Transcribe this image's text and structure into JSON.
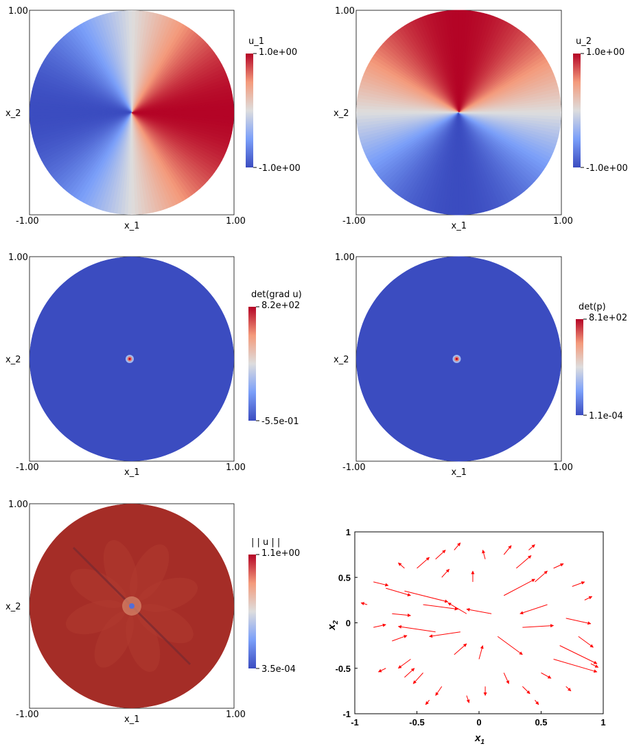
{
  "chart_data": [
    {
      "type": "heatmap",
      "field": "u_1",
      "pattern": "cos_angle",
      "xlabel": "x_1",
      "ylabel": "x_2",
      "x_ticks": [
        "-1.00",
        "1.00"
      ],
      "y_ticks": [
        "1.00"
      ],
      "xlim": [
        -1,
        1
      ],
      "ylim": [
        -1,
        1
      ],
      "domain": "unit disk",
      "colormap": "cool-to-warm",
      "colorbar": {
        "title": "u_1",
        "max_label": "1.0e+00",
        "min_label": "-1.0e+00",
        "max": 1.0,
        "min": -1.0
      }
    },
    {
      "type": "heatmap",
      "field": "u_2",
      "pattern": "sin_angle",
      "xlabel": "x_1",
      "ylabel": "x_2",
      "x_ticks": [
        "-1.00",
        "1.00"
      ],
      "y_ticks": [
        "1.00"
      ],
      "xlim": [
        -1,
        1
      ],
      "ylim": [
        -1,
        1
      ],
      "domain": "unit disk",
      "colormap": "cool-to-warm",
      "colorbar": {
        "title": "u_2",
        "max_label": "1.0e+00",
        "min_label": "-1.0e+00",
        "max": 1.0,
        "min": -1.0
      }
    },
    {
      "type": "heatmap",
      "field": "det(grad u)",
      "pattern": "center_spike",
      "xlabel": "x_1",
      "ylabel": "x_2",
      "x_ticks": [
        "-1.00",
        "1.00"
      ],
      "y_ticks": [
        "1.00"
      ],
      "xlim": [
        -1,
        1
      ],
      "ylim": [
        -1,
        1
      ],
      "domain": "unit disk",
      "colormap": "cool-to-warm",
      "colorbar": {
        "title": "det(grad u)",
        "max_label": "8.2e+02",
        "min_label": "-5.5e-01",
        "max": 820,
        "min": -0.55
      }
    },
    {
      "type": "heatmap",
      "field": "det(p)",
      "pattern": "center_spike",
      "xlabel": "x_1",
      "ylabel": "x_2",
      "x_ticks": [
        "-1.00",
        "1.00"
      ],
      "y_ticks": [
        "1.00"
      ],
      "xlim": [
        -1,
        1
      ],
      "ylim": [
        -1,
        1
      ],
      "domain": "unit disk",
      "colormap": "cool-to-warm",
      "colorbar": {
        "title": "det(p)",
        "max_label": "8.1e+02",
        "min_label": "1.1e-04",
        "max": 810,
        "min": 0.00011
      }
    },
    {
      "type": "heatmap",
      "field": "||u||",
      "pattern": "near_max_with_center_dip",
      "xlabel": "x_1",
      "ylabel": "x_2",
      "x_ticks": [
        "-1.00",
        "1.00"
      ],
      "y_ticks": [
        "1.00"
      ],
      "xlim": [
        -1,
        1
      ],
      "ylim": [
        -1,
        1
      ],
      "domain": "unit disk",
      "colormap": "cool-to-warm",
      "colorbar": {
        "title": "| | u | |",
        "max_label": "1.1e+00",
        "min_label": "3.5e-04",
        "max": 1.1,
        "min": 0.00035
      }
    },
    {
      "type": "scatter",
      "subtype": "quiver",
      "xlabel": "x",
      "xlabel_sub": "1",
      "ylabel": "x",
      "ylabel_sub": "2",
      "xlim": [
        -1,
        1
      ],
      "ylim": [
        -1,
        1
      ],
      "x_ticks": [
        "-1",
        "-0.5",
        "0",
        "0.5",
        "1"
      ],
      "y_ticks": [
        "1",
        "0.5",
        "0",
        "-0.5",
        "-1"
      ],
      "arrow_color": "#ff0000",
      "arrows": [
        {
          "x": -0.85,
          "y": 0.45,
          "u": 0.12,
          "v": -0.04
        },
        {
          "x": -0.75,
          "y": 0.38,
          "u": 0.2,
          "v": -0.08
        },
        {
          "x": -0.6,
          "y": 0.35,
          "u": 0.35,
          "v": -0.12
        },
        {
          "x": -0.5,
          "y": 0.6,
          "u": 0.1,
          "v": 0.12
        },
        {
          "x": -0.35,
          "y": 0.7,
          "u": 0.08,
          "v": 0.1
        },
        {
          "x": -0.2,
          "y": 0.8,
          "u": 0.05,
          "v": 0.08
        },
        {
          "x": -0.3,
          "y": 0.5,
          "u": 0.06,
          "v": 0.09
        },
        {
          "x": -0.45,
          "y": 0.2,
          "u": 0.28,
          "v": -0.05
        },
        {
          "x": -0.7,
          "y": 0.1,
          "u": 0.15,
          "v": -0.02
        },
        {
          "x": -0.85,
          "y": -0.05,
          "u": 0.1,
          "v": 0.03
        },
        {
          "x": -0.7,
          "y": -0.2,
          "u": 0.12,
          "v": 0.06
        },
        {
          "x": -0.55,
          "y": -0.4,
          "u": -0.1,
          "v": -0.1
        },
        {
          "x": -0.45,
          "y": -0.55,
          "u": -0.08,
          "v": -0.12
        },
        {
          "x": -0.3,
          "y": -0.7,
          "u": -0.05,
          "v": -0.1
        },
        {
          "x": -0.2,
          "y": -0.35,
          "u": 0.1,
          "v": 0.12
        },
        {
          "x": -0.1,
          "y": -0.8,
          "u": 0.02,
          "v": -0.08
        },
        {
          "x": 0.05,
          "y": -0.7,
          "u": 0.0,
          "v": -0.1
        },
        {
          "x": 0.2,
          "y": -0.55,
          "u": 0.04,
          "v": -0.12
        },
        {
          "x": 0.35,
          "y": -0.7,
          "u": 0.06,
          "v": -0.08
        },
        {
          "x": 0.5,
          "y": -0.55,
          "u": 0.08,
          "v": -0.06
        },
        {
          "x": 0.6,
          "y": -0.4,
          "u": 0.35,
          "v": -0.14
        },
        {
          "x": 0.65,
          "y": -0.25,
          "u": 0.3,
          "v": -0.2
        },
        {
          "x": 0.8,
          "y": -0.15,
          "u": 0.12,
          "v": -0.12
        },
        {
          "x": 0.7,
          "y": 0.05,
          "u": 0.2,
          "v": -0.06
        },
        {
          "x": 0.55,
          "y": 0.2,
          "u": -0.22,
          "v": -0.1
        },
        {
          "x": 0.45,
          "y": 0.45,
          "u": 0.1,
          "v": 0.12
        },
        {
          "x": 0.3,
          "y": 0.6,
          "u": 0.12,
          "v": 0.14
        },
        {
          "x": 0.2,
          "y": 0.75,
          "u": 0.06,
          "v": 0.1
        },
        {
          "x": 0.05,
          "y": 0.7,
          "u": -0.02,
          "v": 0.1
        },
        {
          "x": 0.4,
          "y": 0.8,
          "u": 0.05,
          "v": 0.06
        },
        {
          "x": 0.6,
          "y": 0.6,
          "u": 0.08,
          "v": 0.05
        },
        {
          "x": 0.75,
          "y": 0.4,
          "u": 0.1,
          "v": 0.05
        },
        {
          "x": 0.85,
          "y": 0.25,
          "u": 0.06,
          "v": 0.04
        },
        {
          "x": 0.2,
          "y": 0.3,
          "u": 0.25,
          "v": 0.18
        },
        {
          "x": 0.1,
          "y": 0.1,
          "u": -0.2,
          "v": 0.05
        },
        {
          "x": -0.1,
          "y": 0.1,
          "u": -0.15,
          "v": 0.12
        },
        {
          "x": -0.15,
          "y": -0.1,
          "u": -0.25,
          "v": -0.05
        },
        {
          "x": 0.15,
          "y": -0.15,
          "u": 0.2,
          "v": -0.2
        },
        {
          "x": -0.35,
          "y": -0.1,
          "u": -0.3,
          "v": 0.06
        },
        {
          "x": 0.35,
          "y": -0.05,
          "u": 0.25,
          "v": 0.02
        },
        {
          "x": -0.6,
          "y": -0.6,
          "u": 0.08,
          "v": 0.1
        },
        {
          "x": 0.0,
          "y": -0.4,
          "u": 0.03,
          "v": 0.15
        },
        {
          "x": 0.45,
          "y": -0.85,
          "u": 0.03,
          "v": -0.05
        },
        {
          "x": -0.4,
          "y": -0.85,
          "u": -0.03,
          "v": -0.05
        },
        {
          "x": -0.75,
          "y": -0.5,
          "u": -0.06,
          "v": -0.04
        },
        {
          "x": 0.9,
          "y": -0.45,
          "u": 0.06,
          "v": -0.04
        },
        {
          "x": -0.05,
          "y": 0.45,
          "u": 0.0,
          "v": 0.12
        },
        {
          "x": -0.6,
          "y": 0.6,
          "u": -0.05,
          "v": 0.06
        },
        {
          "x": 0.7,
          "y": -0.7,
          "u": 0.04,
          "v": -0.05
        },
        {
          "x": -0.9,
          "y": 0.2,
          "u": -0.05,
          "v": 0.02
        }
      ]
    }
  ]
}
